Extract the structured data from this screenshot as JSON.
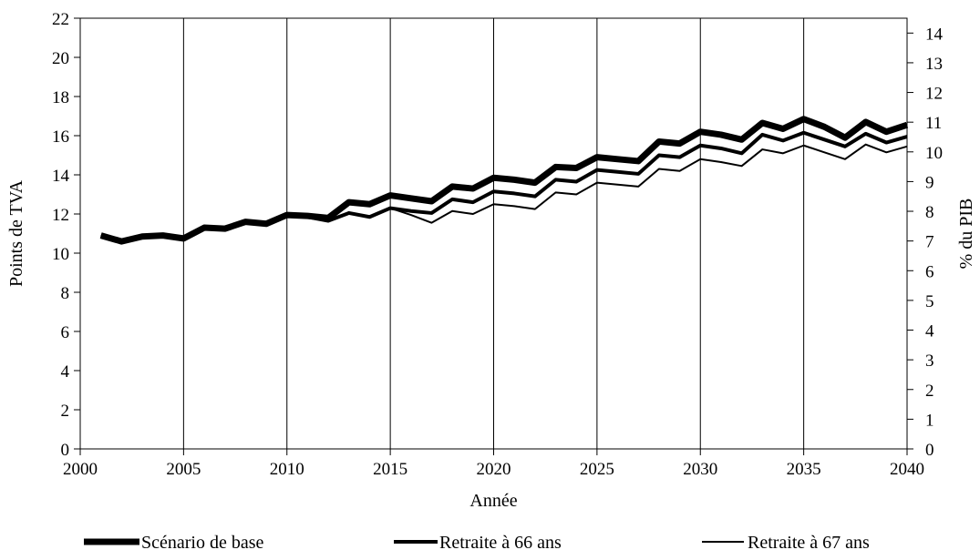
{
  "chart_data": {
    "type": "line",
    "xlabel": "Année",
    "ylabel": "Points de TVA",
    "y2label": "% du PIB",
    "xlim": [
      2000,
      2040
    ],
    "ylim": [
      0,
      22
    ],
    "y2lim": [
      0,
      14.5
    ],
    "x_ticks": [
      "2000",
      "2005",
      "2010",
      "2015",
      "2020",
      "2025",
      "2030",
      "2035",
      "2040"
    ],
    "y_ticks": [
      "0",
      "2",
      "4",
      "6",
      "8",
      "10",
      "12",
      "14",
      "16",
      "18",
      "20",
      "22"
    ],
    "y2_ticks": [
      "0",
      "1",
      "2",
      "3",
      "4",
      "5",
      "6",
      "7",
      "8",
      "9",
      "10",
      "11",
      "12",
      "13",
      "14"
    ],
    "grid": "vertical",
    "legend_position": "bottom",
    "x": [
      2001,
      2002,
      2003,
      2004,
      2005,
      2006,
      2007,
      2008,
      2009,
      2010,
      2011,
      2012,
      2013,
      2014,
      2015,
      2016,
      2017,
      2018,
      2019,
      2020,
      2021,
      2022,
      2023,
      2024,
      2025,
      2026,
      2027,
      2028,
      2029,
      2030,
      2031,
      2032,
      2033,
      2034,
      2035,
      2036,
      2037,
      2038,
      2039,
      2040
    ],
    "series": [
      {
        "name": "Scénario de base",
        "values": [
          10.9,
          10.6,
          10.85,
          10.9,
          10.75,
          11.3,
          11.25,
          11.6,
          11.5,
          11.95,
          11.9,
          11.8,
          12.6,
          12.5,
          12.95,
          12.8,
          12.65,
          13.4,
          13.3,
          13.85,
          13.75,
          13.6,
          14.4,
          14.35,
          14.9,
          14.8,
          14.7,
          15.7,
          15.6,
          16.2,
          16.05,
          15.8,
          16.65,
          16.35,
          16.85,
          16.45,
          15.9,
          16.7,
          16.2,
          16.55
        ]
      },
      {
        "name": "Retraite à 66 ans",
        "values": [
          10.9,
          10.6,
          10.85,
          10.9,
          10.75,
          11.3,
          11.25,
          11.6,
          11.5,
          11.95,
          11.85,
          11.65,
          12.05,
          11.85,
          12.3,
          12.15,
          12.05,
          12.75,
          12.6,
          13.15,
          13.05,
          12.9,
          13.75,
          13.65,
          14.25,
          14.15,
          14.05,
          15.0,
          14.9,
          15.5,
          15.35,
          15.1,
          16.05,
          15.75,
          16.15,
          15.8,
          15.45,
          16.1,
          15.65,
          15.95
        ]
      },
      {
        "name": "Retraite à 67 ans",
        "values": [
          10.9,
          10.6,
          10.85,
          10.9,
          10.75,
          11.3,
          11.25,
          11.6,
          11.5,
          11.95,
          11.85,
          11.65,
          12.05,
          11.85,
          12.3,
          11.95,
          11.55,
          12.15,
          12.0,
          12.5,
          12.4,
          12.25,
          13.1,
          13.0,
          13.6,
          13.5,
          13.4,
          14.3,
          14.2,
          14.8,
          14.65,
          14.45,
          15.3,
          15.1,
          15.5,
          15.15,
          14.8,
          15.55,
          15.15,
          15.45
        ]
      }
    ]
  }
}
